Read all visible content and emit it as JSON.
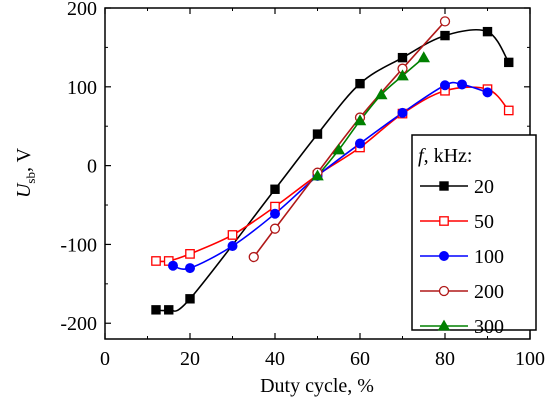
{
  "chart_data": {
    "type": "scatter",
    "xlabel": "Duty cycle, %",
    "ylabel_main": "U",
    "ylabel_sub": "sb",
    "ylabel_unit": ", V",
    "xlim": [
      0,
      100
    ],
    "ylim": [
      -220,
      200
    ],
    "xticks": [
      0,
      20,
      40,
      60,
      80,
      100
    ],
    "yticks": [
      -200,
      -100,
      0,
      100,
      200
    ],
    "grid": false,
    "legend": {
      "placement": "right",
      "title_var": "f",
      "title_unit": ", kHz:"
    },
    "series": [
      {
        "name": "20",
        "color": "#000000",
        "marker": "square-filled",
        "x": [
          12,
          15,
          20,
          40,
          50,
          60,
          70,
          80,
          90,
          95
        ],
        "y": [
          -183,
          -183,
          -169,
          -30,
          40,
          104,
          137,
          165,
          170,
          131
        ]
      },
      {
        "name": "50",
        "color": "#ff0000",
        "marker": "square-open",
        "x": [
          12,
          15,
          20,
          30,
          40,
          50,
          60,
          70,
          80,
          90,
          95
        ],
        "y": [
          -121,
          -121,
          -112,
          -88,
          -52,
          -12,
          23,
          66,
          95,
          97,
          70
        ]
      },
      {
        "name": "100",
        "color": "#0000ff",
        "marker": "circle-filled",
        "x": [
          16,
          20,
          30,
          40,
          50,
          60,
          70,
          80,
          84,
          90
        ],
        "y": [
          -127,
          -130,
          -102,
          -61,
          -13,
          28,
          67,
          102,
          103,
          93
        ]
      },
      {
        "name": "200",
        "color": "#b01818",
        "marker": "circle-open",
        "x": [
          35,
          40,
          50,
          60,
          70,
          80
        ],
        "y": [
          -116,
          -80,
          -9,
          61,
          123,
          183
        ]
      },
      {
        "name": "300",
        "color": "#008000",
        "marker": "triangle-filled",
        "x": [
          50,
          55,
          60,
          65,
          70,
          75
        ],
        "y": [
          -13,
          20,
          57,
          90,
          114,
          137
        ]
      }
    ]
  }
}
